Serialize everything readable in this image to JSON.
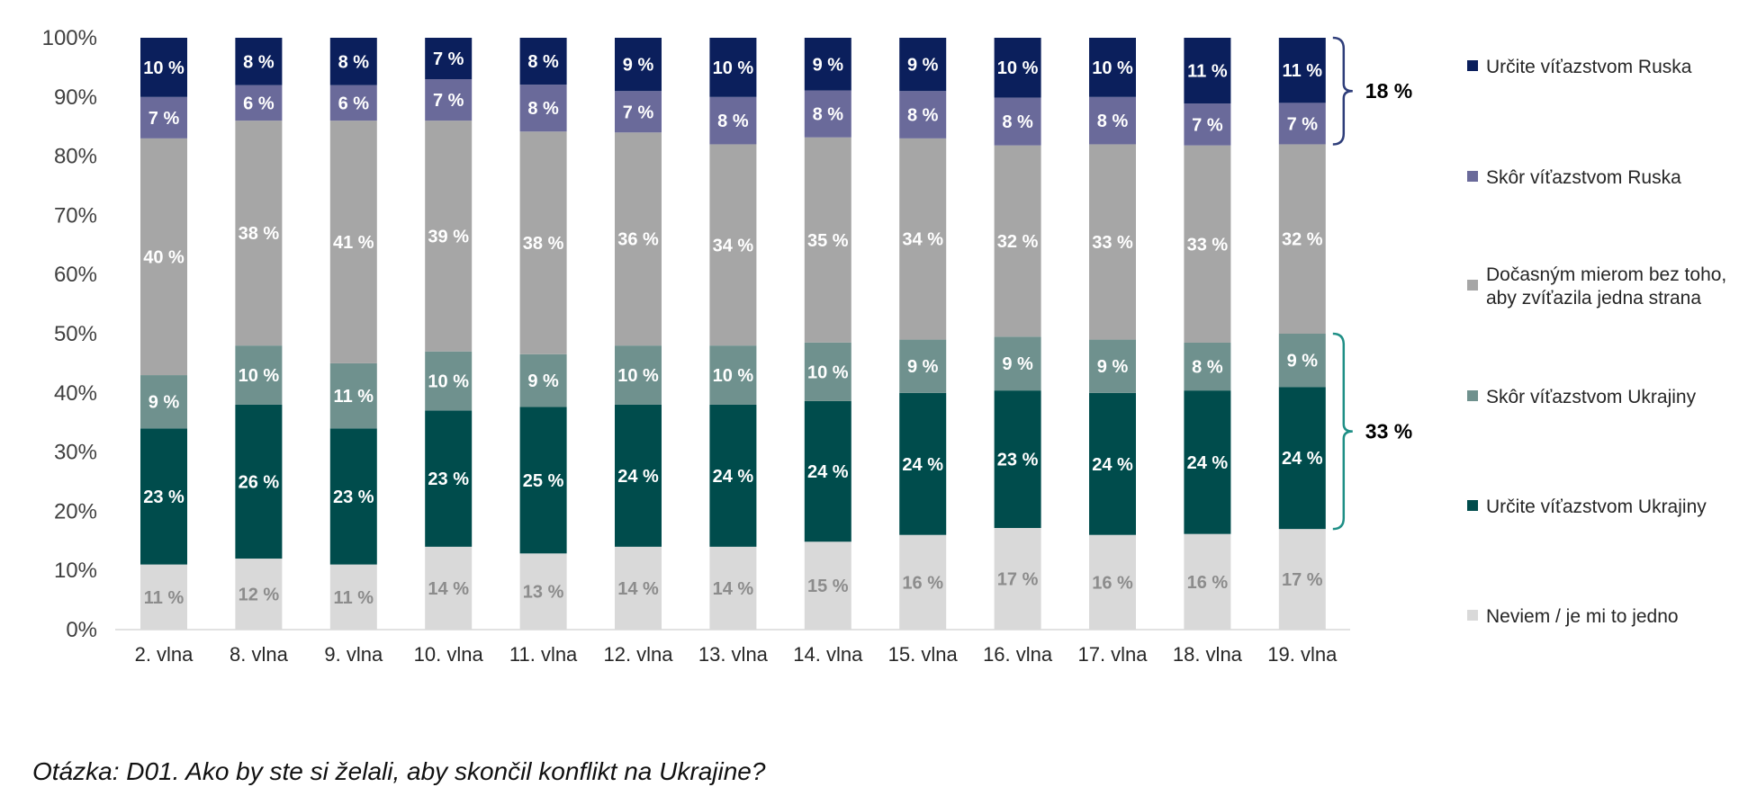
{
  "question": "Otázka: D01. Ako by ste si želali, aby skončil konflikt na Ukrajine?",
  "chart_data": {
    "type": "bar",
    "stacked": true,
    "percent": true,
    "categories": [
      "2. vlna",
      "8. vlna",
      "9. vlna",
      "10. vlna",
      "11. vlna",
      "12. vlna",
      "13. vlna",
      "14. vlna",
      "15. vlna",
      "16. vlna",
      "17. vlna",
      "18. vlna",
      "19. vlna"
    ],
    "ylim": [
      0,
      100
    ],
    "yticks": [
      "0%",
      "10%",
      "20%",
      "30%",
      "40%",
      "50%",
      "60%",
      "70%",
      "80%",
      "90%",
      "100%"
    ],
    "legend_position": "right",
    "series": [
      {
        "name": "Neviem / je mi to jedno",
        "color": "#d9d9d9",
        "label_color": "#8c8c8c",
        "values": [
          11,
          12,
          11,
          14,
          13,
          14,
          14,
          15,
          16,
          17,
          16,
          16,
          17
        ],
        "labels": [
          "11 %",
          "12 %",
          "11 %",
          "14 %",
          "13 %",
          "14 %",
          "14 %",
          "15 %",
          "16 %",
          "17 %",
          "16 %",
          "16 %",
          "17 %"
        ]
      },
      {
        "name": "Určite víťazstvom Ukrajiny",
        "color": "#004c4c",
        "label_color": "#ffffff",
        "values": [
          23,
          26,
          23,
          23,
          25,
          24,
          24,
          24,
          24,
          23,
          24,
          24,
          24
        ],
        "labels": [
          "23 %",
          "26 %",
          "23 %",
          "23 %",
          "25 %",
          "24 %",
          "24 %",
          "24 %",
          "24 %",
          "23 %",
          "24 %",
          "24 %",
          "24 %"
        ]
      },
      {
        "name": "Skôr víťazstvom Ukrajiny",
        "color": "#6f918e",
        "label_color": "#ffffff",
        "values": [
          9,
          10,
          11,
          10,
          9,
          10,
          10,
          10,
          9,
          9,
          9,
          8,
          9
        ],
        "labels": [
          "9 %",
          "10 %",
          "11 %",
          "10 %",
          "9 %",
          "10 %",
          "10 %",
          "10 %",
          "9 %",
          "9 %",
          "9 %",
          "8 %",
          "9 %"
        ]
      },
      {
        "name": "Dočasným mierom bez toho, aby zvíťazila jedna strana",
        "name_lines": [
          "Dočasným mierom bez toho,",
          "aby zvíťazila jedna strana"
        ],
        "color": "#a6a6a6",
        "label_color": "#ffffff",
        "values": [
          40,
          38,
          41,
          39,
          38,
          36,
          34,
          35,
          34,
          32,
          33,
          33,
          32
        ],
        "labels": [
          "40 %",
          "38 %",
          "41 %",
          "39 %",
          "38 %",
          "36 %",
          "34 %",
          "35 %",
          "34 %",
          "32 %",
          "33 %",
          "33 %",
          "32 %"
        ]
      },
      {
        "name": "Skôr víťazstvom Ruska",
        "color": "#6a6a9a",
        "label_color": "#ffffff",
        "values": [
          7,
          6,
          6,
          7,
          8,
          7,
          8,
          8,
          8,
          8,
          8,
          7,
          7
        ],
        "labels": [
          "7 %",
          "6 %",
          "6 %",
          "7 %",
          "8 %",
          "7 %",
          "8 %",
          "8 %",
          "8 %",
          "8 %",
          "8 %",
          "7 %",
          "7 %"
        ]
      },
      {
        "name": "Určite víťazstvom Ruska",
        "color": "#0b1f5c",
        "label_color": "#ffffff",
        "values": [
          10,
          8,
          8,
          7,
          8,
          9,
          10,
          9,
          9,
          10,
          10,
          11,
          11
        ],
        "labels": [
          "10 %",
          "8 %",
          "8 %",
          "7 %",
          "8 %",
          "9 %",
          "10 %",
          "9 %",
          "9 %",
          "10 %",
          "10 %",
          "11 %",
          "11 %"
        ]
      }
    ],
    "legend_order": [
      5,
      4,
      3,
      2,
      1,
      0
    ],
    "annotations": [
      {
        "text": "18 %",
        "series": [
          4,
          5
        ],
        "category": 12,
        "color": "#2f3e7a"
      },
      {
        "text": "33 %",
        "series": [
          1,
          2
        ],
        "category": 12,
        "color": "#1f8f86"
      }
    ]
  }
}
